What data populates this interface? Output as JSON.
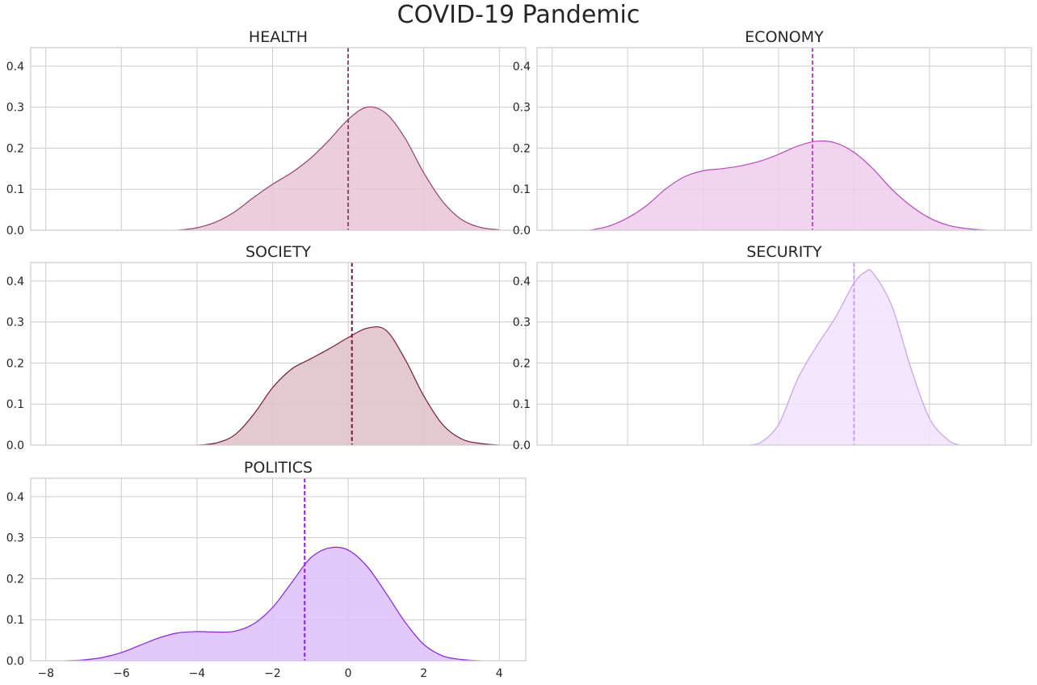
{
  "figure": {
    "title": "COVID-19 Pandemic"
  },
  "chart_data": [
    {
      "type": "area",
      "title": "HEALTH",
      "color": "#9c3f6e",
      "fill": "#e6c5d5",
      "mean": 0.0,
      "xlim": [
        -8.4,
        4.7
      ],
      "ylim": [
        0,
        0.445
      ],
      "yticks": [
        0.0,
        0.1,
        0.2,
        0.3,
        0.4
      ],
      "xticks": [],
      "grid": true,
      "x": [
        -4.5,
        -4.0,
        -3.5,
        -3.0,
        -2.5,
        -2.0,
        -1.5,
        -1.0,
        -0.5,
        0.0,
        0.5,
        1.0,
        1.5,
        2.0,
        2.5,
        3.0,
        3.5,
        4.0
      ],
      "y": [
        0.0,
        0.006,
        0.02,
        0.045,
        0.08,
        0.112,
        0.14,
        0.175,
        0.22,
        0.27,
        0.3,
        0.285,
        0.225,
        0.14,
        0.07,
        0.026,
        0.007,
        0.001
      ]
    },
    {
      "type": "area",
      "title": "ECONOMY",
      "color": "#c044c5",
      "fill": "#efcdeb",
      "mean": -1.1,
      "xlim": [
        -8.4,
        4.7
      ],
      "ylim": [
        0,
        0.445
      ],
      "yticks": [
        0.0,
        0.1,
        0.2,
        0.3,
        0.4
      ],
      "xticks": [],
      "grid": true,
      "x": [
        -7.0,
        -6.5,
        -6.0,
        -5.5,
        -5.0,
        -4.5,
        -4.0,
        -3.5,
        -3.0,
        -2.5,
        -2.0,
        -1.5,
        -1.0,
        -0.5,
        0.0,
        0.5,
        1.0,
        1.5,
        2.0,
        2.5,
        3.0,
        3.5
      ],
      "y": [
        0.0,
        0.01,
        0.03,
        0.06,
        0.1,
        0.13,
        0.145,
        0.15,
        0.157,
        0.168,
        0.185,
        0.205,
        0.217,
        0.213,
        0.19,
        0.15,
        0.1,
        0.06,
        0.03,
        0.012,
        0.004,
        0.0
      ]
    },
    {
      "type": "area",
      "title": "SOCIETY",
      "color": "#7a1a36",
      "fill": "#dec0c8",
      "mean": 0.1,
      "xlim": [
        -8.4,
        4.7
      ],
      "ylim": [
        0,
        0.445
      ],
      "yticks": [
        0.0,
        0.1,
        0.2,
        0.3,
        0.4
      ],
      "xticks": [],
      "grid": true,
      "x": [
        -4.0,
        -3.5,
        -3.0,
        -2.5,
        -2.0,
        -1.5,
        -1.0,
        -0.5,
        0.0,
        0.5,
        1.0,
        1.5,
        2.0,
        2.5,
        3.0,
        3.5,
        4.0
      ],
      "y": [
        0.0,
        0.005,
        0.025,
        0.075,
        0.14,
        0.185,
        0.21,
        0.235,
        0.262,
        0.285,
        0.28,
        0.21,
        0.12,
        0.05,
        0.015,
        0.004,
        0.0
      ]
    },
    {
      "type": "area",
      "title": "SECURITY",
      "color": "#c99ef2",
      "fill": "#f0e3fc",
      "mean": 0.0,
      "xlim": [
        -8.4,
        4.7
      ],
      "ylim": [
        0,
        0.445
      ],
      "yticks": [
        0.0,
        0.1,
        0.2,
        0.3,
        0.4
      ],
      "xticks": [],
      "grid": true,
      "x": [
        -2.8,
        -2.5,
        -2.0,
        -1.5,
        -1.0,
        -0.5,
        0.0,
        0.3,
        0.5,
        1.0,
        1.5,
        2.0,
        2.5,
        2.8
      ],
      "y": [
        0.0,
        0.005,
        0.05,
        0.16,
        0.24,
        0.31,
        0.395,
        0.422,
        0.42,
        0.34,
        0.19,
        0.065,
        0.012,
        0.0
      ]
    },
    {
      "type": "area",
      "title": "POLITICS",
      "color": "#8b1ef0",
      "fill": "#dcc0fc",
      "mean": -1.15,
      "xlim": [
        -8.4,
        4.7
      ],
      "ylim": [
        0,
        0.445
      ],
      "yticks": [
        0.0,
        0.1,
        0.2,
        0.3,
        0.4
      ],
      "xticks": [
        -8,
        -6,
        -4,
        -2,
        0,
        2,
        4
      ],
      "grid": true,
      "x": [
        -7.5,
        -7.0,
        -6.5,
        -6.0,
        -5.5,
        -5.0,
        -4.5,
        -4.0,
        -3.5,
        -3.0,
        -2.5,
        -2.0,
        -1.5,
        -1.0,
        -0.5,
        0.0,
        0.5,
        1.0,
        1.5,
        2.0,
        2.5,
        3.0,
        3.5
      ],
      "y": [
        0.0,
        0.002,
        0.008,
        0.02,
        0.038,
        0.056,
        0.068,
        0.071,
        0.07,
        0.072,
        0.09,
        0.13,
        0.19,
        0.25,
        0.275,
        0.27,
        0.23,
        0.165,
        0.095,
        0.04,
        0.012,
        0.003,
        0.0
      ]
    }
  ]
}
